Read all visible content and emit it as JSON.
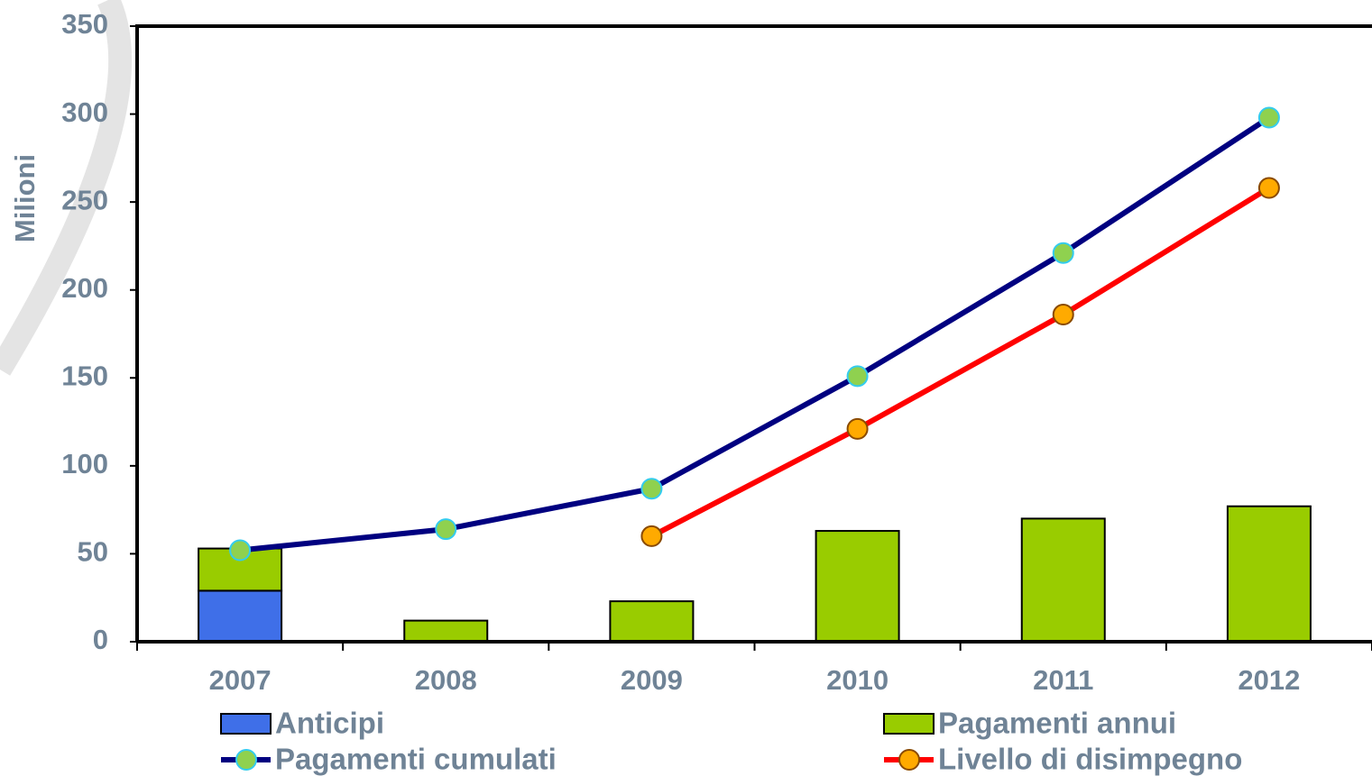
{
  "chart_data": {
    "type": "combo",
    "y_label": "Milioni",
    "categories": [
      "2007",
      "2008",
      "2009",
      "2010",
      "2011",
      "2012"
    ],
    "series": [
      {
        "name": "Anticipi",
        "type": "bar",
        "color": "#3f6fe8",
        "values": [
          29,
          null,
          null,
          null,
          null,
          null
        ]
      },
      {
        "name": "Pagamenti annui",
        "type": "bar",
        "color": "#99cc00",
        "values": [
          24,
          12,
          23,
          63,
          70,
          77
        ]
      },
      {
        "name": "Pagamenti cumulati",
        "type": "line",
        "color": "#000080",
        "marker_color": "#8fd14f",
        "marker_edge": "#33ccee",
        "values": [
          52,
          64,
          87,
          151,
          221,
          298
        ]
      },
      {
        "name": "Livello di disimpegno",
        "type": "line",
        "color": "#ff0000",
        "marker_color": "#ffaa00",
        "marker_edge": "#8a4a00",
        "values": [
          null,
          null,
          60,
          121,
          186,
          258
        ]
      }
    ],
    "stacked": true,
    "ylim": [
      0,
      350
    ],
    "yticks": [
      0,
      50,
      100,
      150,
      200,
      250,
      300,
      350
    ]
  }
}
